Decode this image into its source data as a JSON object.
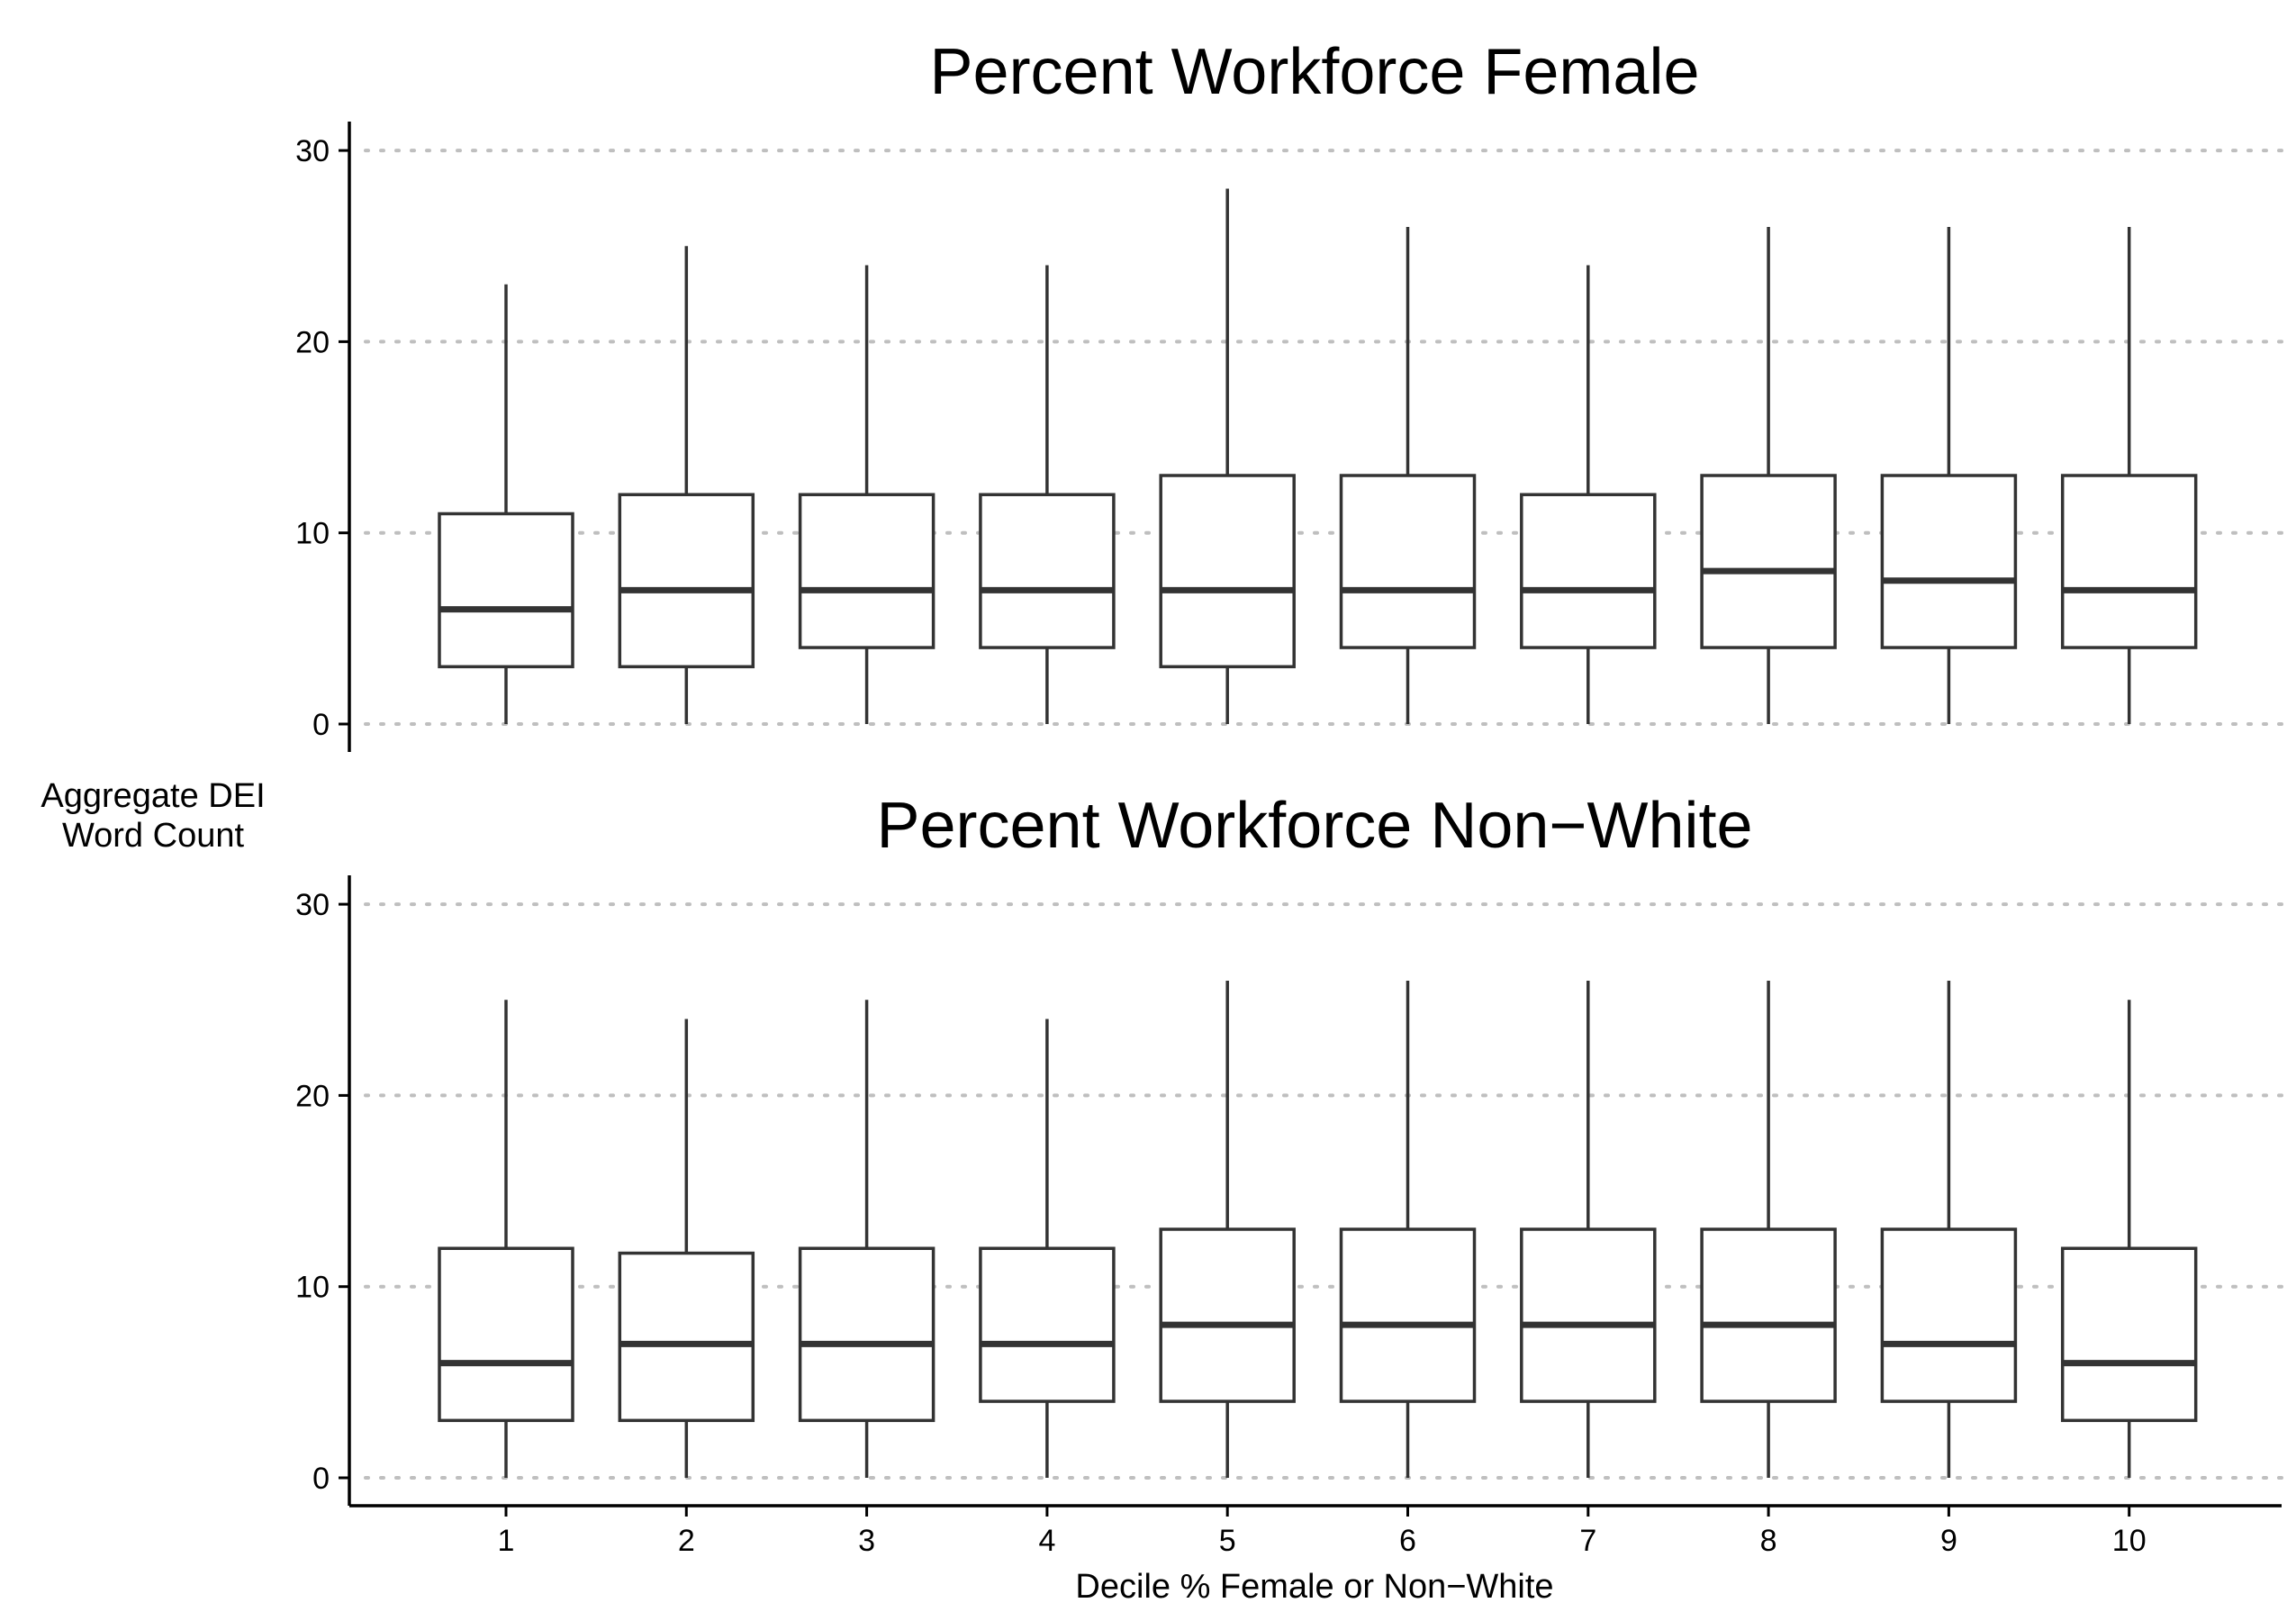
{
  "chart_data": {
    "type": "boxplot",
    "y_axis_title_lines": [
      "Aggregate DEI",
      "Word Count"
    ],
    "x_axis_title": "Decile % Female or Non−White",
    "categories": [
      "1",
      "2",
      "3",
      "4",
      "5",
      "6",
      "7",
      "8",
      "9",
      "10"
    ],
    "y_ticks": [
      "0",
      "10",
      "20",
      "30"
    ],
    "ylim": [
      -1.5,
      31.5
    ],
    "grid": "horizontal dotted at y ticks",
    "colors": {
      "box_stroke": "#333333",
      "grid": "#bfbfbf",
      "axis": "#000000"
    },
    "panels": [
      {
        "title": "Percent Workforce Female",
        "boxes": [
          {
            "category": "1",
            "whisker_low": 0,
            "q1": 3,
            "median": 6,
            "q3": 11,
            "whisker_high": 23
          },
          {
            "category": "2",
            "whisker_low": 0,
            "q1": 3,
            "median": 7,
            "q3": 12,
            "whisker_high": 25
          },
          {
            "category": "3",
            "whisker_low": 0,
            "q1": 4,
            "median": 7,
            "q3": 12,
            "whisker_high": 24
          },
          {
            "category": "4",
            "whisker_low": 0,
            "q1": 4,
            "median": 7,
            "q3": 12,
            "whisker_high": 24
          },
          {
            "category": "5",
            "whisker_low": 0,
            "q1": 3,
            "median": 7,
            "q3": 13,
            "whisker_high": 28
          },
          {
            "category": "6",
            "whisker_low": 0,
            "q1": 4,
            "median": 7,
            "q3": 13,
            "whisker_high": 26
          },
          {
            "category": "7",
            "whisker_low": 0,
            "q1": 4,
            "median": 7,
            "q3": 12,
            "whisker_high": 24
          },
          {
            "category": "8",
            "whisker_low": 0,
            "q1": 4,
            "median": 8,
            "q3": 13,
            "whisker_high": 26
          },
          {
            "category": "9",
            "whisker_low": 0,
            "q1": 4,
            "median": 7.5,
            "q3": 13,
            "whisker_high": 26
          },
          {
            "category": "10",
            "whisker_low": 0,
            "q1": 4,
            "median": 7,
            "q3": 13,
            "whisker_high": 26
          }
        ]
      },
      {
        "title": "Percent Workforce Non−White",
        "boxes": [
          {
            "category": "1",
            "whisker_low": 0,
            "q1": 3,
            "median": 6,
            "q3": 12,
            "whisker_high": 25
          },
          {
            "category": "2",
            "whisker_low": 0,
            "q1": 3,
            "median": 7,
            "q3": 11.75,
            "whisker_high": 24
          },
          {
            "category": "3",
            "whisker_low": 0,
            "q1": 3,
            "median": 7,
            "q3": 12,
            "whisker_high": 25
          },
          {
            "category": "4",
            "whisker_low": 0,
            "q1": 4,
            "median": 7,
            "q3": 12,
            "whisker_high": 24
          },
          {
            "category": "5",
            "whisker_low": 0,
            "q1": 4,
            "median": 8,
            "q3": 13,
            "whisker_high": 26
          },
          {
            "category": "6",
            "whisker_low": 0,
            "q1": 4,
            "median": 8,
            "q3": 13,
            "whisker_high": 26
          },
          {
            "category": "7",
            "whisker_low": 0,
            "q1": 4,
            "median": 8,
            "q3": 13,
            "whisker_high": 26
          },
          {
            "category": "8",
            "whisker_low": 0,
            "q1": 4,
            "median": 8,
            "q3": 13,
            "whisker_high": 26
          },
          {
            "category": "9",
            "whisker_low": 0,
            "q1": 4,
            "median": 7,
            "q3": 13,
            "whisker_high": 26
          },
          {
            "category": "10",
            "whisker_low": 0,
            "q1": 3,
            "median": 6,
            "q3": 12,
            "whisker_high": 25
          }
        ]
      }
    ]
  }
}
